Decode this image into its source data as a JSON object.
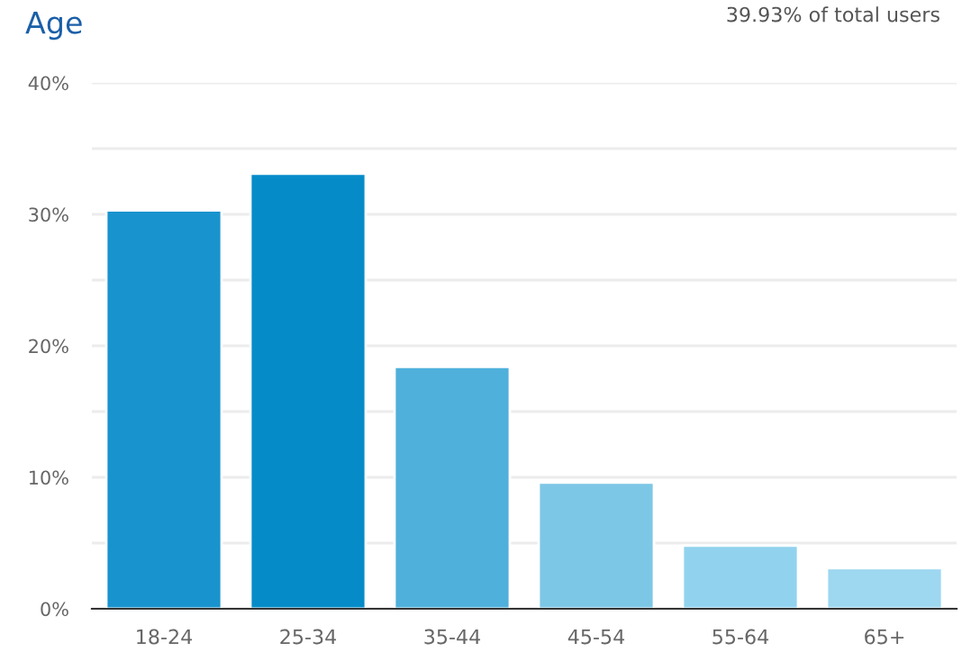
{
  "chart_data": {
    "type": "bar",
    "title": "Age",
    "annotations": [
      "39.93% of total users"
    ],
    "categories": [
      "18-24",
      "25-34",
      "35-44",
      "45-54",
      "55-64",
      "65+"
    ],
    "values": [
      30.3,
      33.1,
      18.4,
      9.6,
      4.8,
      3.1
    ],
    "colors": [
      "#1993ce",
      "#058cc8",
      "#4fb0db",
      "#7dc7e6",
      "#91d3ee",
      "#9dd7f0"
    ],
    "ylim": [
      0,
      40
    ],
    "yticks": [
      {
        "value": 0,
        "label": "0%"
      },
      {
        "value": 5,
        "label": null
      },
      {
        "value": 10,
        "label": "10%"
      },
      {
        "value": 15,
        "label": null
      },
      {
        "value": 20,
        "label": "20%"
      },
      {
        "value": 25,
        "label": null
      },
      {
        "value": 30,
        "label": "30%"
      },
      {
        "value": 35,
        "label": null
      },
      {
        "value": 40,
        "label": "40%"
      }
    ],
    "grid": "y"
  }
}
